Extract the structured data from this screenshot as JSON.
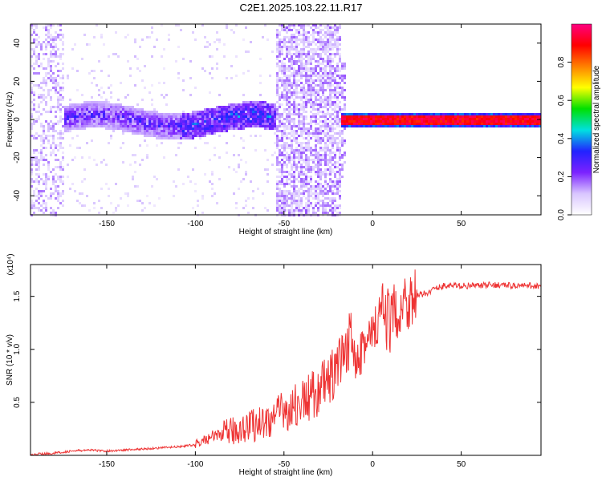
{
  "title": "C2E1.2025.103.22.11.R17",
  "colors": {
    "snr_line": "#ee3333",
    "background": "#ffffff",
    "axis": "#000000"
  },
  "chart_data": [
    {
      "type": "heatmap",
      "xlabel": "Height of straight line (km)",
      "ylabel": "Frequency (Hz)",
      "xlim": [
        -193,
        95
      ],
      "ylim": [
        -50,
        50
      ],
      "xticks": [
        -150,
        -100,
        -50,
        0,
        50
      ],
      "yticks": [
        -40,
        -20,
        0,
        20,
        40
      ],
      "colorbar": {
        "label": "Normalized spectral amplitude",
        "range": [
          0,
          1
        ],
        "ticks": [
          "0.0",
          "0.2",
          "0.4",
          "0.6",
          "0.8"
        ],
        "colormap": [
          "#ffffff",
          "#d9c6ff",
          "#7b22ff",
          "#2222ff",
          "#00e0e0",
          "#00e000",
          "#ffff00",
          "#ff8000",
          "#ff0000",
          "#ff0080"
        ]
      },
      "regions": [
        {
          "x_range": [
            -193,
            -175
          ],
          "content": "noise speckle"
        },
        {
          "x_range": [
            -175,
            -55
          ],
          "content": "weak echo trace near 0 Hz"
        },
        {
          "x_range": [
            -55,
            -19
          ],
          "content": "noise burst"
        },
        {
          "x_range": [
            -19,
            95
          ],
          "content": "strong echo trace at 0 Hz"
        }
      ]
    },
    {
      "type": "line",
      "xlabel": "Height of straight line (km)",
      "ylabel": "SNR (10 * v/v)",
      "y_multiplier": "(x10⁴)",
      "xlim": [
        -193,
        95
      ],
      "ylim": [
        0,
        1.8
      ],
      "xticks": [
        -150,
        -100,
        -50,
        0,
        50
      ],
      "yticks": [
        "0.5",
        "1.0",
        "1.5"
      ],
      "series": [
        {
          "x": [
            -193,
            -180,
            -170,
            -160,
            -150,
            -140,
            -130,
            -120,
            -110,
            -100,
            -95,
            -90,
            -85,
            -80,
            -75,
            -70,
            -65,
            -60,
            -55,
            -50,
            -45,
            -40,
            -35,
            -30,
            -25,
            -20,
            -15,
            -12,
            -10,
            -8,
            -5,
            0,
            5,
            10,
            15,
            20,
            25,
            30,
            35,
            40,
            50,
            60,
            70,
            80,
            95
          ],
          "y": [
            0.01,
            0.02,
            0.04,
            0.05,
            0.04,
            0.05,
            0.06,
            0.07,
            0.08,
            0.1,
            0.14,
            0.18,
            0.2,
            0.22,
            0.25,
            0.28,
            0.3,
            0.32,
            0.36,
            0.42,
            0.45,
            0.5,
            0.55,
            0.62,
            0.7,
            0.8,
            0.9,
            1.2,
            0.95,
            1.05,
            1.05,
            1.1,
            1.35,
            1.25,
            1.4,
            1.48,
            1.5,
            1.53,
            1.57,
            1.6,
            1.6,
            1.6,
            1.61,
            1.6,
            1.6
          ]
        }
      ]
    }
  ]
}
